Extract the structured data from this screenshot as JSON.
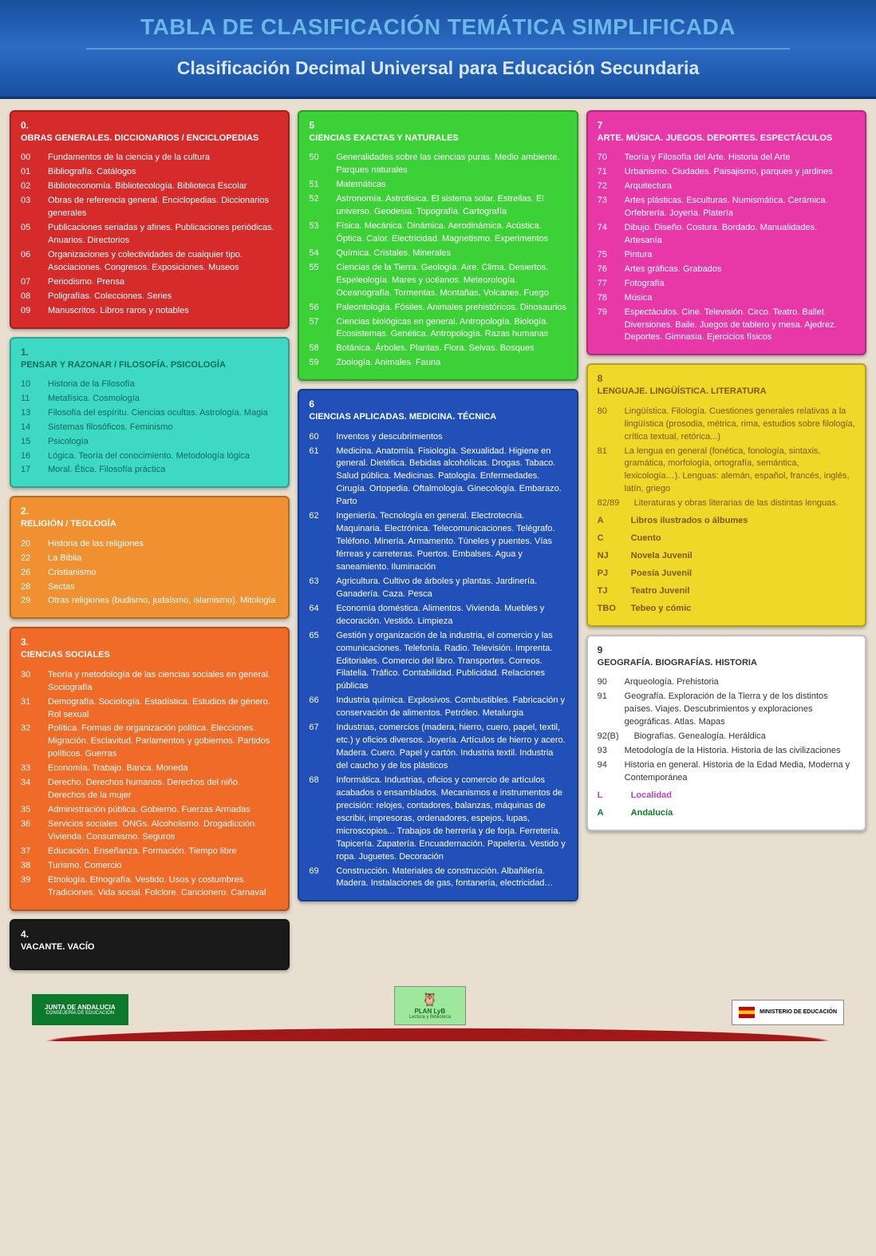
{
  "header": {
    "title": "TABLA DE CLASIFICACIÓN TEMÁTICA SIMPLIFICADA",
    "subtitle": "Clasificación Decimal Universal para Educación Secundaria"
  },
  "colors": {
    "box0": "#d52b2b",
    "box1": "#3dd9c4",
    "box2": "#f09030",
    "box3": "#f06a28",
    "box4": "#1a1a1a",
    "box5": "#3dd138",
    "box6": "#2050b8",
    "box7": "#e838a8",
    "box8": "#f0d828",
    "box9": "#ffffff"
  },
  "text_colors": {
    "box1": "#0a6b5e",
    "box8": "#7a5a00",
    "box9": "#333333"
  },
  "sections": [
    {
      "num": "0.",
      "title": "OBRAS GENERALES. DICCIONARIOS / ENCICLOPEDIAS",
      "items": [
        {
          "c": "00",
          "t": "Fundamentos de la ciencia y de la cultura"
        },
        {
          "c": "01",
          "t": "Bibliografía. Catálogos"
        },
        {
          "c": "02",
          "t": "Biblioteconomía. Bibliotecología. Biblioteca Escolar"
        },
        {
          "c": "03",
          "t": "Obras de referencia general. Enciclopedias. Diccionarios generales"
        },
        {
          "c": "05",
          "t": "Publicaciones seriadas y afines. Publicaciones periódicas. Anuarios. Directorios"
        },
        {
          "c": "06",
          "t": "Organizaciones y colectividades de cualquier tipo. Asociaciones. Congresos. Exposiciones. Museos"
        },
        {
          "c": "07",
          "t": "Periodismo. Prensa"
        },
        {
          "c": "08",
          "t": "Poligrafías. Colecciones. Series"
        },
        {
          "c": "09",
          "t": "Manuscritos. Libros raros y notables"
        }
      ]
    },
    {
      "num": "1.",
      "title": "PENSAR Y RAZONAR / FILOSOFÍA. PSICOLOGÍA",
      "items": [
        {
          "c": "10",
          "t": "Historia de la Filosofía"
        },
        {
          "c": "11",
          "t": "Metafísica. Cosmología"
        },
        {
          "c": "13",
          "t": "Filosofía del espíritu. Ciencias ocultas. Astrología. Magia"
        },
        {
          "c": "14",
          "t": "Sistemas filosóficos. Feminismo"
        },
        {
          "c": "15",
          "t": "Psicología"
        },
        {
          "c": "16",
          "t": "Lógica. Teoría del conocimiento. Metodología lógica"
        },
        {
          "c": "17",
          "t": "Moral. Ética. Filosofía práctica"
        }
      ]
    },
    {
      "num": "2.",
      "title": "RELIGIÓN / TEOLOGÍA",
      "items": [
        {
          "c": "20",
          "t": "Historia de las religiones"
        },
        {
          "c": "22",
          "t": "La Biblia"
        },
        {
          "c": "26",
          "t": "Cristianismo"
        },
        {
          "c": "28",
          "t": "Sectas"
        },
        {
          "c": "29",
          "t": "Otras religiones (budismo, judaísmo, islamismo). Mitología"
        }
      ]
    },
    {
      "num": "3.",
      "title": "CIENCIAS SOCIALES",
      "items": [
        {
          "c": "30",
          "t": "Teoría y metodología de las ciencias sociales en general. Sociografía"
        },
        {
          "c": "31",
          "t": "Demografía. Sociología. Estadística. Estudios de género. Rol sexual"
        },
        {
          "c": "32",
          "t": "Política. Formas de organización política. Elecciones. Migración. Esclavitud. Parlamentos y gobiernos. Partidos políticos. Guerras"
        },
        {
          "c": "33",
          "t": "Economía. Trabajo. Banca. Moneda"
        },
        {
          "c": "34",
          "t": "Derecho. Derechos humanos. Derechos del niño. Derechos de la mujer"
        },
        {
          "c": "35",
          "t": "Administración pública. Gobierno. Fuerzas Armadas"
        },
        {
          "c": "36",
          "t": "Servicios sociales. ONGs. Alcoholismo. Drogadicción. Vivienda. Consumismo. Seguros"
        },
        {
          "c": "37",
          "t": "Educación. Enseñanza. Formación. Tiempo libre"
        },
        {
          "c": "38",
          "t": "Turismo. Comercio"
        },
        {
          "c": "39",
          "t": "Etnología. Etnografía. Vestido. Usos y costumbres. Tradiciones. Vida social. Folclore. Cancionero. Carnaval"
        }
      ]
    },
    {
      "num": "4.",
      "title": "VACANTE. VACÍO",
      "items": []
    },
    {
      "num": "5",
      "title": "CIENCIAS EXACTAS Y NATURALES",
      "items": [
        {
          "c": "50",
          "t": "Generalidades sobre las ciencias puras. Medio ambiente. Parques naturales"
        },
        {
          "c": "51",
          "t": "Matemáticas"
        },
        {
          "c": "52",
          "t": "Astronomía. Astrofísica. El sistema solar. Estrellas. El universo. Geodesia. Topografía. Cartografía"
        },
        {
          "c": "53",
          "t": "Física. Mecánica. Dinámica. Aerodinámica. Acústica. Óptica. Calor. Electricidad. Magnetismo. Experimentos"
        },
        {
          "c": "54",
          "t": "Química. Cristales. Minerales"
        },
        {
          "c": "55",
          "t": "Ciencias de la Tierra. Geología. Aire. Clima. Desiertos. Espeleología. Mares y océanos. Meteorología. Oceanografía. Tormentas. Montañas. Volcanes. Fuego"
        },
        {
          "c": "56",
          "t": "Paleontología. Fósiles. Animales prehistóricos. Dinosaurios"
        },
        {
          "c": "57",
          "t": "Ciencias biológicas en general. Antropología. Biología. Ecosistemas. Genética. Antropología. Razas humanas"
        },
        {
          "c": "58",
          "t": "Botánica. Árboles. Plantas. Flora. Selvas. Bosques"
        },
        {
          "c": "59",
          "t": "Zoología. Animales. Fauna"
        }
      ]
    },
    {
      "num": "6",
      "title": "CIENCIAS APLICADAS. MEDICINA. TÉCNICA",
      "items": [
        {
          "c": "60",
          "t": "Inventos y descubrimientos"
        },
        {
          "c": "61",
          "t": "Medicina. Anatomía. Fisiología. Sexualidad. Higiene en general. Dietética. Bebidas alcohólicas. Drogas. Tabaco. Salud pública. Medicinas. Patología. Enfermedades. Cirugía. Ortopedia. Oftalmología. Ginecología. Embarazo. Parto"
        },
        {
          "c": "62",
          "t": "Ingeniería. Tecnología en general. Electrotecnia. Maquinaria. Electrónica. Telecomunicaciones. Telégrafo. Teléfono. Minería. Armamento. Túneles y puentes. Vías férreas y carreteras. Puertos. Embalses. Agua y saneamiento. Iluminación"
        },
        {
          "c": "63",
          "t": "Agricultura. Cultivo de árboles y plantas. Jardinería. Ganadería. Caza. Pesca"
        },
        {
          "c": "64",
          "t": "Economía doméstica. Alimentos. Vivienda. Muebles y decoración. Vestido. Limpieza"
        },
        {
          "c": "65",
          "t": "Gestión y organización de la industria, el comercio y las comunicaciones. Telefonía. Radio. Televisión. Imprenta. Editoriales. Comercio del libro. Transportes. Correos. Filatelia. Tráfico. Contabilidad. Publicidad. Relaciones públicas"
        },
        {
          "c": "66",
          "t": "Industria química. Explosivos. Combustibles. Fabricación y conservación de alimentos. Petróleo. Metalurgia"
        },
        {
          "c": "67",
          "t": "Industrias, comercios (madera, hierro, cuero, papel, textil, etc.) y oficios diversos. Joyería. Artículos de hierro y acero. Madera. Cuero. Papel y cartón. Industria textil. Industria del caucho y de los plásticos"
        },
        {
          "c": "68",
          "t": "Informática. Industrias, oficios y comercio de artículos acabados o ensamblados. Mecanismos e instrumentos de precisión: relojes, contadores, balanzas, máquinas de escribir, impresoras, ordenadores, espejos, lupas, microscopios... Trabajos de herrería y de forja. Ferretería. Tapicería. Zapatería. Encuadernación. Papelería. Vestido y ropa. Juguetes. Decoración"
        },
        {
          "c": "69",
          "t": "Construcción. Materiales de construcción. Albañilería. Madera. Instalaciones de gas, fontanería, electricidad…"
        }
      ]
    },
    {
      "num": "7",
      "title": "ARTE. MÚSICA. JUEGOS. DEPORTES. ESPECTÁCULOS",
      "items": [
        {
          "c": "70",
          "t": "Teoría y Filosofía del Arte. Historia del Arte"
        },
        {
          "c": "71",
          "t": "Urbanismo. Ciudades. Paisajismo, parques y jardines"
        },
        {
          "c": "72",
          "t": "Arquitectura"
        },
        {
          "c": "73",
          "t": "Artes plásticas. Esculturas. Numismática. Cerámica. Orfebrería. Joyería. Platería"
        },
        {
          "c": "74",
          "t": "Dibujo. Diseño. Costura. Bordado. Manualidades. Artesanía"
        },
        {
          "c": "75",
          "t": "Pintura"
        },
        {
          "c": "76",
          "t": "Artes gráficas. Grabados"
        },
        {
          "c": "77",
          "t": "Fotografía"
        },
        {
          "c": "78",
          "t": "Música"
        },
        {
          "c": "79",
          "t": "Espectáculos. Cine. Televisión. Circo. Teatro. Ballet. Diversiones. Baile. Juegos de tablero y mesa. Ajedrez. Deportes. Gimnasia. Ejercicios físicos"
        }
      ]
    },
    {
      "num": "8",
      "title": "LENGUAJE. LINGÜÍSTICA. LITERATURA",
      "items": [
        {
          "c": "80",
          "t": "Lingüística. Filología. Cuestiones generales relativas a la lingüística (prosodia, métrica, rima, estudios sobre filología, crítica textual, retórica...)"
        },
        {
          "c": "81",
          "t": "La lengua en general (fonética, fonología, sintaxis, gramática, morfología, ortografía, semántica, lexicología…). Lenguas: alemán, español, francés, inglés, latín, griego"
        },
        {
          "c": "82/89",
          "t": "Literaturas y obras literarias de las distintas lenguas."
        }
      ],
      "extras": [
        {
          "c": "A",
          "t": "Libros ilustrados o álbumes"
        },
        {
          "c": "C",
          "t": "Cuento"
        },
        {
          "c": "NJ",
          "t": "Novela Juvenil"
        },
        {
          "c": "PJ",
          "t": "Poesía Juvenil"
        },
        {
          "c": "TJ",
          "t": "Teatro Juvenil"
        },
        {
          "c": "TBO",
          "t": "Tebeo y cómic"
        }
      ]
    },
    {
      "num": "9",
      "title": "GEOGRAFÍA. BIOGRAFÍAS. HISTORIA",
      "items": [
        {
          "c": "90",
          "t": "Arqueología. Prehistoria"
        },
        {
          "c": "91",
          "t": "Geografía. Exploración de la Tierra y de los distintos países. Viajes. Descubrimientos y exploraciones geográficas. Atlas. Mapas"
        },
        {
          "c": "92(B)",
          "t": "Biografías. Genealogía. Heráldica"
        },
        {
          "c": "93",
          "t": "Metodología de la Historia. Historia de las civilizaciones"
        },
        {
          "c": "94",
          "t": "Historia en general. Historia de la Edad Media, Moderna y Contemporánea"
        }
      ],
      "extras": [
        {
          "c": "L",
          "t": "Localidad",
          "color": "#c040c0"
        },
        {
          "c": "A",
          "t": "Andalucía",
          "color": "#0c7a2b"
        }
      ]
    }
  ],
  "footer": {
    "junta": "JUNTA DE ANDALUCIA",
    "junta_sub": "CONSEJERÍA DE EDUCACIÓN",
    "plan": "PLAN LyB",
    "plan_sub": "Lectura y Biblioteca",
    "ministerio": "MINISTERIO DE EDUCACIÓN"
  }
}
